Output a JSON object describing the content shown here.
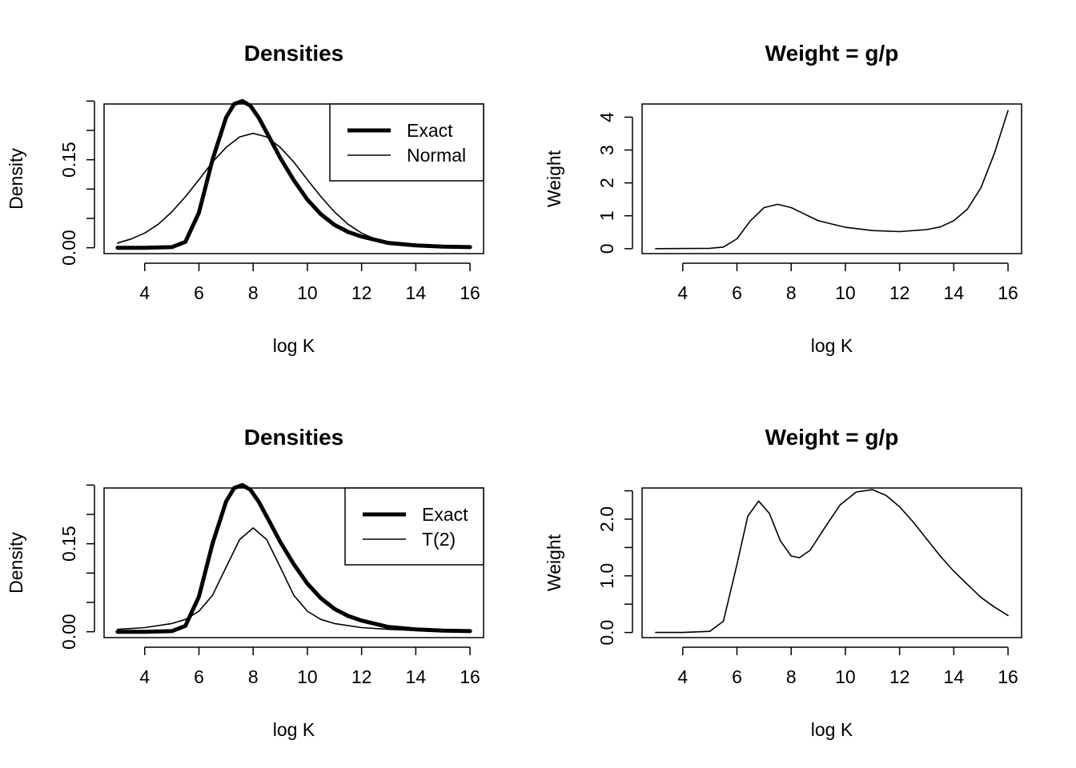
{
  "figure": {
    "background": "#ffffff",
    "ink": "#000000",
    "layout": "2x2 grid"
  },
  "chart_data": [
    {
      "id": "densities_normal",
      "type": "line",
      "title": "Densities",
      "xlabel": "log K",
      "ylabel": "Density",
      "xlim": [
        2.5,
        16.5
      ],
      "ylim": [
        -0.01,
        0.245
      ],
      "xticks": [
        4,
        6,
        8,
        10,
        12,
        14,
        16
      ],
      "yticks": [
        0,
        0.05,
        0.1,
        0.15,
        0.2,
        0.25
      ],
      "ytick_labels": {
        "0": "0.00",
        "0.15": "0.15"
      },
      "grid": false,
      "legend": {
        "position": "top-right",
        "entries": [
          "Exact",
          "Normal"
        ]
      },
      "series": [
        {
          "name": "Exact",
          "line_width": "thick",
          "x": [
            3,
            4,
            5,
            5.5,
            6,
            6.5,
            7,
            7.3,
            7.6,
            7.9,
            8.2,
            8.6,
            9,
            9.5,
            10,
            10.5,
            11,
            11.5,
            12,
            13,
            14,
            15,
            16
          ],
          "y": [
            0,
            0,
            0.001,
            0.01,
            0.06,
            0.15,
            0.222,
            0.245,
            0.25,
            0.242,
            0.222,
            0.188,
            0.153,
            0.115,
            0.082,
            0.057,
            0.039,
            0.027,
            0.019,
            0.008,
            0.004,
            0.002,
            0.001
          ]
        },
        {
          "name": "Normal",
          "line_width": "thin",
          "x": [
            3,
            3.5,
            4,
            4.5,
            5,
            5.5,
            6,
            6.5,
            7,
            7.5,
            8,
            8.5,
            9,
            9.5,
            10,
            10.5,
            11,
            11.5,
            12,
            12.5,
            13,
            13.5,
            14,
            15,
            16
          ],
          "y": [
            0.008,
            0.015,
            0.025,
            0.04,
            0.061,
            0.087,
            0.116,
            0.146,
            0.171,
            0.189,
            0.195,
            0.189,
            0.171,
            0.146,
            0.116,
            0.087,
            0.061,
            0.04,
            0.025,
            0.015,
            0.008,
            0.004,
            0.002,
            0.001,
            0
          ]
        }
      ]
    },
    {
      "id": "weight_normal",
      "type": "line",
      "title": "Weight = g/p",
      "xlabel": "log K",
      "ylabel": "Weight",
      "xlim": [
        2.5,
        16.5
      ],
      "ylim": [
        -0.15,
        4.4
      ],
      "xticks": [
        4,
        6,
        8,
        10,
        12,
        14,
        16
      ],
      "yticks": [
        0,
        1,
        2,
        3,
        4
      ],
      "ytick_labels": {
        "0": "0",
        "1": "1",
        "2": "2",
        "3": "3",
        "4": "4"
      },
      "grid": false,
      "series": [
        {
          "name": "",
          "x": [
            3,
            5,
            5.5,
            6,
            6.5,
            7,
            7.5,
            8,
            8.5,
            9,
            10,
            11,
            12,
            13,
            13.5,
            14,
            14.5,
            15,
            15.5,
            16
          ],
          "y": [
            0,
            0.01,
            0.05,
            0.3,
            0.85,
            1.25,
            1.35,
            1.25,
            1.05,
            0.85,
            0.65,
            0.55,
            0.52,
            0.58,
            0.66,
            0.85,
            1.2,
            1.85,
            2.9,
            4.2
          ]
        }
      ]
    },
    {
      "id": "densities_t2",
      "type": "line",
      "title": "Densities",
      "xlabel": "log K",
      "ylabel": "Density",
      "xlim": [
        2.5,
        16.5
      ],
      "ylim": [
        -0.01,
        0.245
      ],
      "xticks": [
        4,
        6,
        8,
        10,
        12,
        14,
        16
      ],
      "yticks": [
        0,
        0.05,
        0.1,
        0.15,
        0.2,
        0.25
      ],
      "ytick_labels": {
        "0": "0.00",
        "0.15": "0.15"
      },
      "grid": false,
      "legend": {
        "position": "top-right",
        "entries": [
          "Exact",
          "T(2)"
        ]
      },
      "series": [
        {
          "name": "Exact",
          "line_width": "thick",
          "x": [
            3,
            4,
            5,
            5.5,
            6,
            6.5,
            7,
            7.3,
            7.6,
            7.9,
            8.2,
            8.6,
            9,
            9.5,
            10,
            10.5,
            11,
            11.5,
            12,
            13,
            14,
            15,
            16
          ],
          "y": [
            0,
            0,
            0.001,
            0.01,
            0.06,
            0.15,
            0.222,
            0.245,
            0.25,
            0.242,
            0.222,
            0.188,
            0.153,
            0.115,
            0.082,
            0.057,
            0.039,
            0.027,
            0.019,
            0.008,
            0.004,
            0.002,
            0.001
          ]
        },
        {
          "name": "T(2)",
          "line_width": "thin",
          "x": [
            3,
            4,
            5,
            5.5,
            6,
            6.5,
            7,
            7.5,
            8,
            8.5,
            9,
            9.5,
            10,
            10.5,
            11,
            12,
            13,
            14,
            15,
            16
          ],
          "y": [
            0.004,
            0.007,
            0.014,
            0.021,
            0.035,
            0.062,
            0.11,
            0.157,
            0.177,
            0.157,
            0.11,
            0.062,
            0.035,
            0.021,
            0.014,
            0.007,
            0.004,
            0.002,
            0.001,
            0.001
          ]
        }
      ]
    },
    {
      "id": "weight_t2",
      "type": "line",
      "title": "Weight = g/p",
      "xlabel": "log K",
      "ylabel": "Weight",
      "xlim": [
        2.5,
        16.5
      ],
      "ylim": [
        -0.09,
        2.55
      ],
      "xticks": [
        4,
        6,
        8,
        10,
        12,
        14,
        16
      ],
      "yticks": [
        0,
        0.5,
        1,
        1.5,
        2,
        2.5
      ],
      "ytick_labels": {
        "0": "0.0",
        "1": "1.0",
        "2": "2.0"
      },
      "grid": false,
      "series": [
        {
          "name": "",
          "x": [
            3,
            4,
            5,
            5.5,
            6,
            6.4,
            6.8,
            7.2,
            7.6,
            8,
            8.3,
            8.7,
            9.2,
            9.8,
            10.4,
            11,
            11.5,
            12,
            12.5,
            13,
            13.5,
            14,
            14.5,
            15,
            15.5,
            16
          ],
          "y": [
            0,
            0,
            0.02,
            0.2,
            1.2,
            2.05,
            2.32,
            2.1,
            1.62,
            1.35,
            1.32,
            1.45,
            1.82,
            2.25,
            2.48,
            2.52,
            2.42,
            2.22,
            1.95,
            1.65,
            1.35,
            1.08,
            0.85,
            0.62,
            0.45,
            0.3
          ]
        }
      ]
    }
  ]
}
